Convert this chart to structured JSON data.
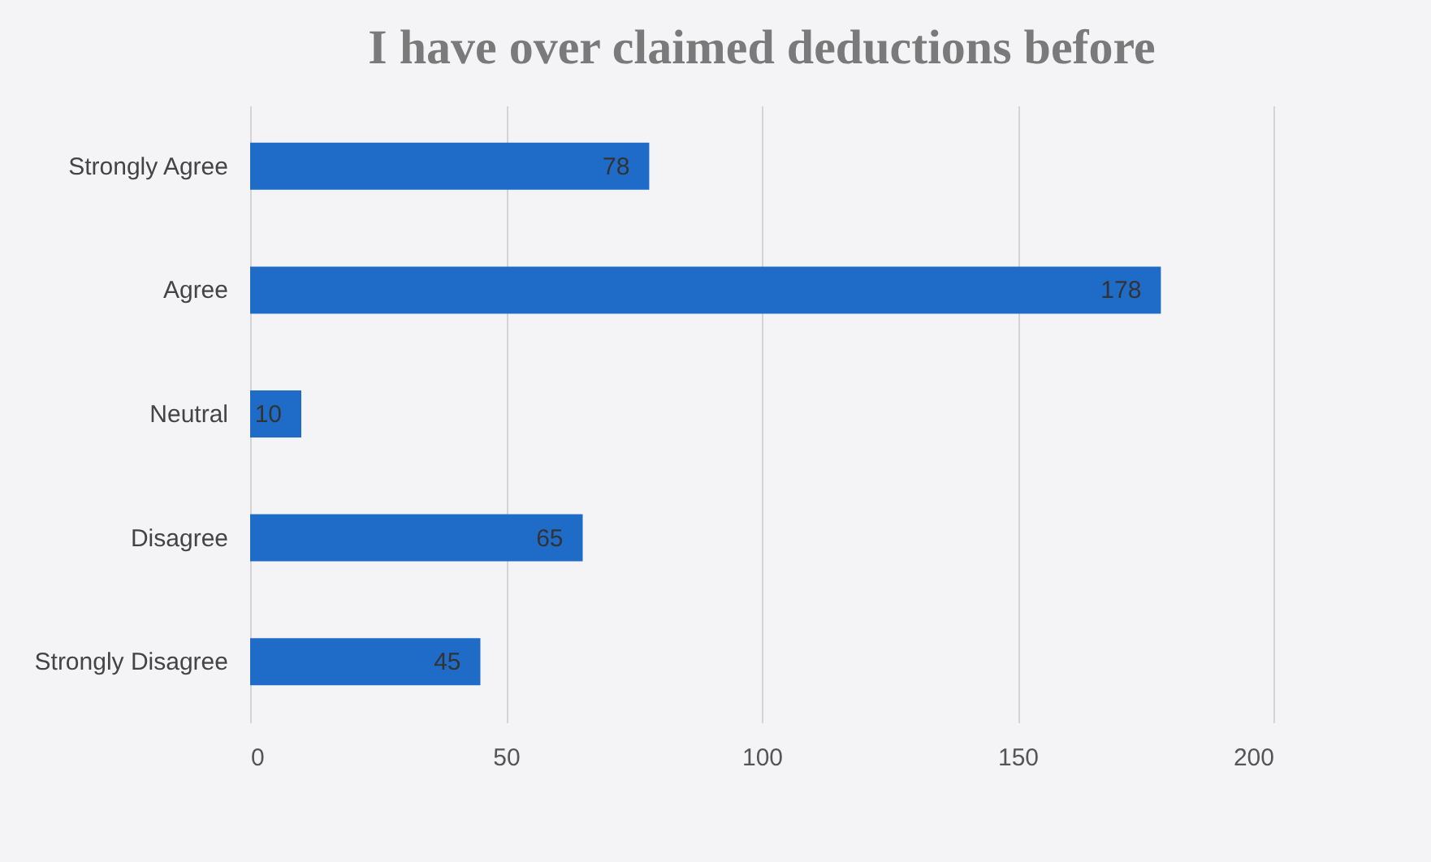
{
  "chart_data": {
    "type": "bar",
    "orientation": "horizontal",
    "title": "I have over claimed deductions before",
    "categories": [
      "Strongly Agree",
      "Agree",
      "Neutral",
      "Disagree",
      "Strongly Disagree"
    ],
    "values": [
      78,
      178,
      10,
      65,
      45
    ],
    "color": "#1f6cc8",
    "xlim": [
      0,
      200
    ],
    "xticks": [
      0,
      50,
      100,
      150,
      200
    ],
    "grid": "x",
    "data_labels": true
  }
}
